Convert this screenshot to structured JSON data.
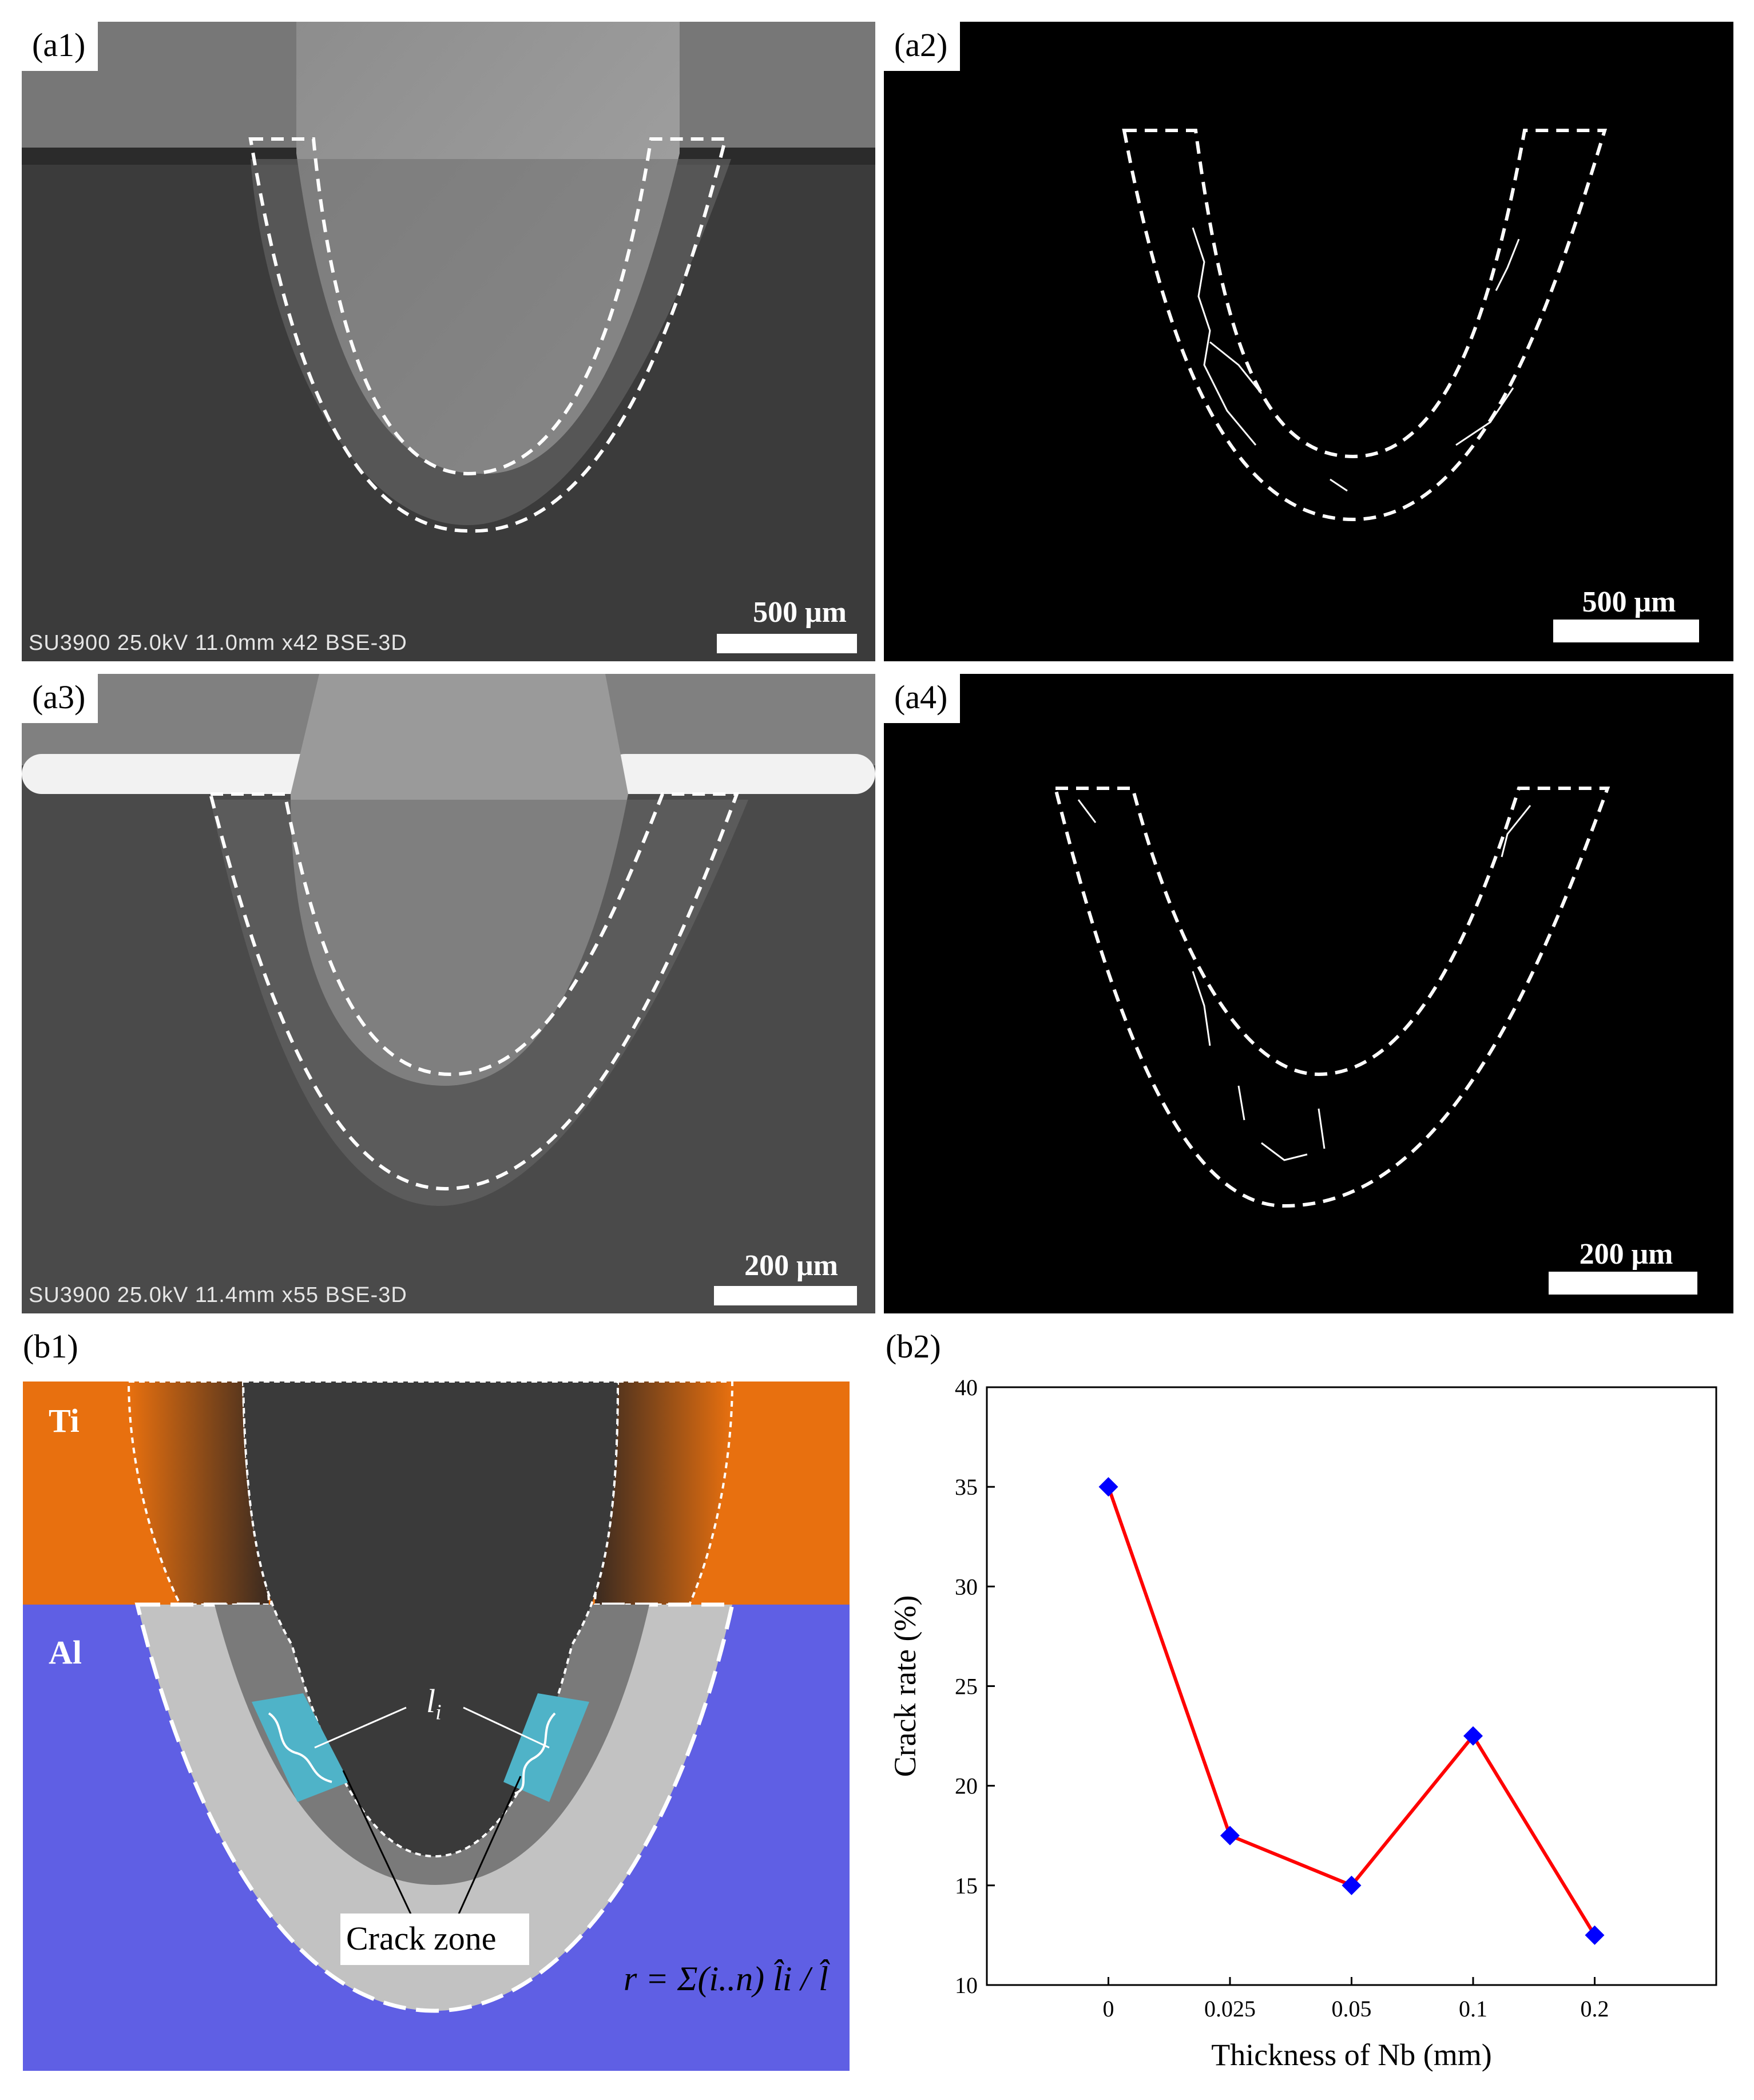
{
  "panels": {
    "a1": {
      "label": "(a1)",
      "scale_bar": "500 μm",
      "sem_info": "SU3900 25.0kV 11.0mm x42 BSE-3D"
    },
    "a2": {
      "label": "(a2)",
      "scale_bar": "500 μm"
    },
    "a3": {
      "label": "(a3)",
      "scale_bar": "200 μm",
      "sem_info": "SU3900 25.0kV 11.4mm x55 BSE-3D"
    },
    "a4": {
      "label": "(a4)",
      "scale_bar": "200 μm"
    },
    "b1": {
      "label": "(b1)",
      "ti_label": "Ti",
      "al_label": "Al",
      "li_label": "l",
      "li_subscript": "i",
      "crack_zone_label": "Crack zone",
      "formula": "r = Σ(i..n) l̂i / l̂",
      "colors": {
        "ti": "#e8700f",
        "al": "#5f5fe4",
        "crack": "#4fb3c8",
        "weld": "#3a3a3a",
        "zone_light": "#c2c2c2",
        "zone_dark": "#7a7a7a"
      }
    },
    "b2": {
      "label": "(b2)"
    }
  },
  "chart_data": {
    "type": "line",
    "categories": [
      "0",
      "0.025",
      "0.05",
      "0.1",
      "0.2"
    ],
    "values": [
      35,
      17.5,
      15,
      22.5,
      12.5
    ],
    "xlabel": "Thickness of Nb (mm)",
    "ylabel": "Crack rate (%)",
    "ylim": [
      10,
      40
    ],
    "yticks": [
      10,
      15,
      20,
      25,
      30,
      35,
      40
    ],
    "line_color": "#ff0000",
    "marker_color": "#0000ff",
    "marker": "diamond",
    "grid": false
  }
}
